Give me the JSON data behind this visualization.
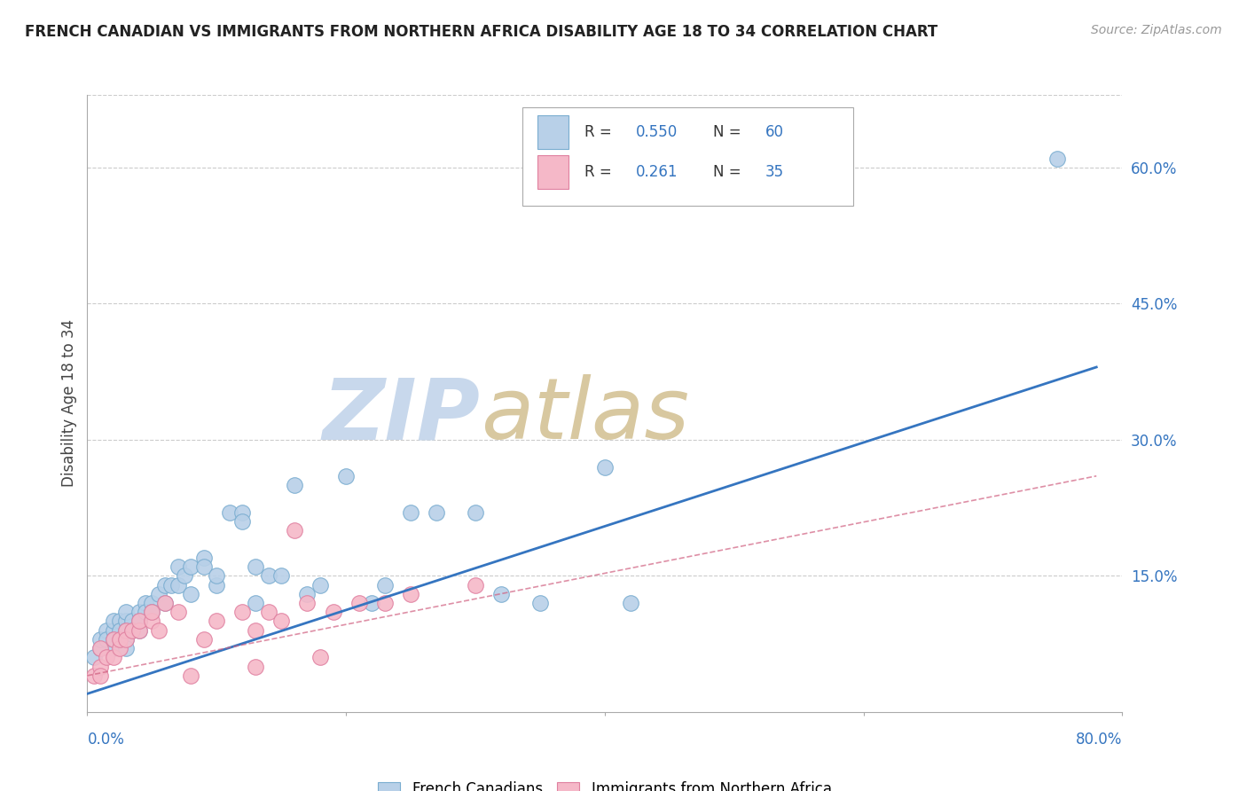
{
  "title": "FRENCH CANADIAN VS IMMIGRANTS FROM NORTHERN AFRICA DISABILITY AGE 18 TO 34 CORRELATION CHART",
  "source": "Source: ZipAtlas.com",
  "ylabel": "Disability Age 18 to 34",
  "xlim": [
    0.0,
    0.8
  ],
  "ylim": [
    0.0,
    0.68
  ],
  "ytick_positions": [
    0.15,
    0.3,
    0.45,
    0.6
  ],
  "ytick_labels": [
    "15.0%",
    "30.0%",
    "45.0%",
    "60.0%"
  ],
  "blue_R": "0.550",
  "blue_N": "60",
  "pink_R": "0.261",
  "pink_N": "35",
  "blue_face_color": "#b8d0e8",
  "blue_edge_color": "#7aadd0",
  "blue_line_color": "#3575c0",
  "pink_face_color": "#f5b8c8",
  "pink_edge_color": "#e080a0",
  "pink_line_color": "#d06080",
  "label_color": "#3575c0",
  "title_color": "#222222",
  "watermark_zip_color": "#c8d8ec",
  "watermark_atlas_color": "#d8c8a0",
  "grid_color": "#cccccc",
  "blue_scatter_x": [
    0.005,
    0.01,
    0.01,
    0.015,
    0.015,
    0.02,
    0.02,
    0.02,
    0.02,
    0.025,
    0.025,
    0.025,
    0.03,
    0.03,
    0.03,
    0.03,
    0.03,
    0.035,
    0.035,
    0.04,
    0.04,
    0.04,
    0.045,
    0.045,
    0.05,
    0.05,
    0.055,
    0.06,
    0.06,
    0.065,
    0.07,
    0.07,
    0.075,
    0.08,
    0.08,
    0.09,
    0.09,
    0.1,
    0.1,
    0.11,
    0.12,
    0.12,
    0.13,
    0.13,
    0.14,
    0.15,
    0.16,
    0.17,
    0.18,
    0.2,
    0.22,
    0.23,
    0.25,
    0.27,
    0.3,
    0.32,
    0.35,
    0.4,
    0.42,
    0.75
  ],
  "blue_scatter_y": [
    0.06,
    0.07,
    0.08,
    0.09,
    0.08,
    0.09,
    0.1,
    0.07,
    0.08,
    0.1,
    0.09,
    0.08,
    0.1,
    0.09,
    0.08,
    0.11,
    0.07,
    0.1,
    0.09,
    0.11,
    0.1,
    0.09,
    0.12,
    0.11,
    0.12,
    0.11,
    0.13,
    0.14,
    0.12,
    0.14,
    0.16,
    0.14,
    0.15,
    0.13,
    0.16,
    0.17,
    0.16,
    0.14,
    0.15,
    0.22,
    0.22,
    0.21,
    0.16,
    0.12,
    0.15,
    0.15,
    0.25,
    0.13,
    0.14,
    0.26,
    0.12,
    0.14,
    0.22,
    0.22,
    0.22,
    0.13,
    0.12,
    0.27,
    0.12,
    0.61
  ],
  "pink_scatter_x": [
    0.005,
    0.01,
    0.01,
    0.01,
    0.015,
    0.02,
    0.02,
    0.025,
    0.025,
    0.03,
    0.03,
    0.035,
    0.04,
    0.04,
    0.05,
    0.05,
    0.055,
    0.06,
    0.07,
    0.08,
    0.09,
    0.1,
    0.12,
    0.13,
    0.14,
    0.16,
    0.17,
    0.19,
    0.21,
    0.23,
    0.13,
    0.15,
    0.18,
    0.25,
    0.3
  ],
  "pink_scatter_y": [
    0.04,
    0.05,
    0.04,
    0.07,
    0.06,
    0.06,
    0.08,
    0.07,
    0.08,
    0.09,
    0.08,
    0.09,
    0.09,
    0.1,
    0.1,
    0.11,
    0.09,
    0.12,
    0.11,
    0.04,
    0.08,
    0.1,
    0.11,
    0.09,
    0.11,
    0.2,
    0.12,
    0.11,
    0.12,
    0.12,
    0.05,
    0.1,
    0.06,
    0.13,
    0.14
  ],
  "blue_line_x": [
    0.0,
    0.78
  ],
  "blue_line_y": [
    0.02,
    0.38
  ],
  "pink_line_x": [
    0.0,
    0.78
  ],
  "pink_line_y": [
    0.04,
    0.26
  ]
}
